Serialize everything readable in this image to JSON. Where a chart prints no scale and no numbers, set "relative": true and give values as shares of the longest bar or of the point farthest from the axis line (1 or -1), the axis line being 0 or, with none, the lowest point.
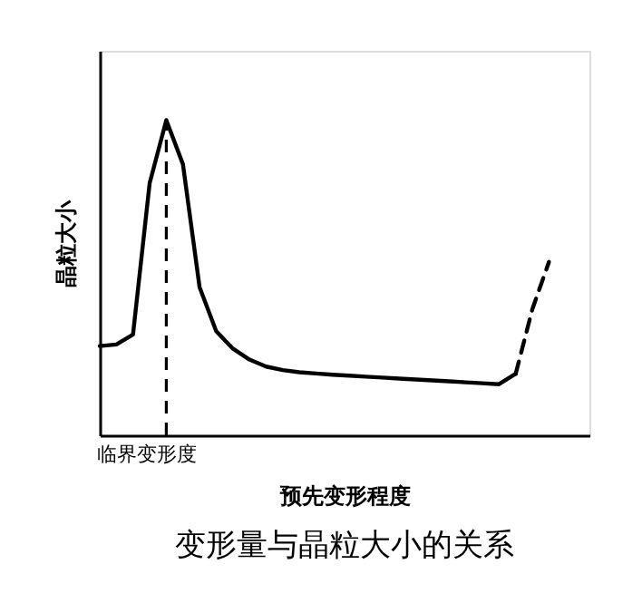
{
  "chart_data": {
    "type": "line",
    "title": "变形量与晶粒大小的关系",
    "xlabel": "预先变形程度",
    "ylabel": "晶粒大小",
    "relative": true,
    "marker": "none",
    "categories": [
      null,
      null,
      null,
      null,
      null,
      null,
      null,
      null,
      null,
      null,
      null,
      null,
      null,
      null,
      null,
      null,
      null,
      null,
      null,
      null,
      null,
      null,
      null,
      null,
      null,
      null,
      null,
      null
    ],
    "series": [
      {
        "color": "#000000",
        "line_style": "solid",
        "values": [
          0.283,
          0.288,
          0.32,
          0.8,
          1,
          0.86,
          0.47,
          0.33,
          0.275,
          0.24,
          0.218,
          0.207,
          0.2,
          0.196,
          0.192,
          0.189,
          0.186,
          0.183,
          0.18,
          0.177,
          0.174,
          0.171,
          0.168,
          0.165,
          0.162,
          0.195,
          null,
          null
        ]
      },
      {
        "color": "#000000",
        "line_style": "dashed",
        "values": [
          null,
          null,
          null,
          null,
          null,
          null,
          null,
          null,
          null,
          null,
          null,
          null,
          null,
          null,
          null,
          null,
          null,
          null,
          null,
          null,
          null,
          null,
          null,
          null,
          null,
          0.195,
          0.4,
          0.55
        ]
      }
    ],
    "annotations": [
      "临界变形度"
    ]
  }
}
